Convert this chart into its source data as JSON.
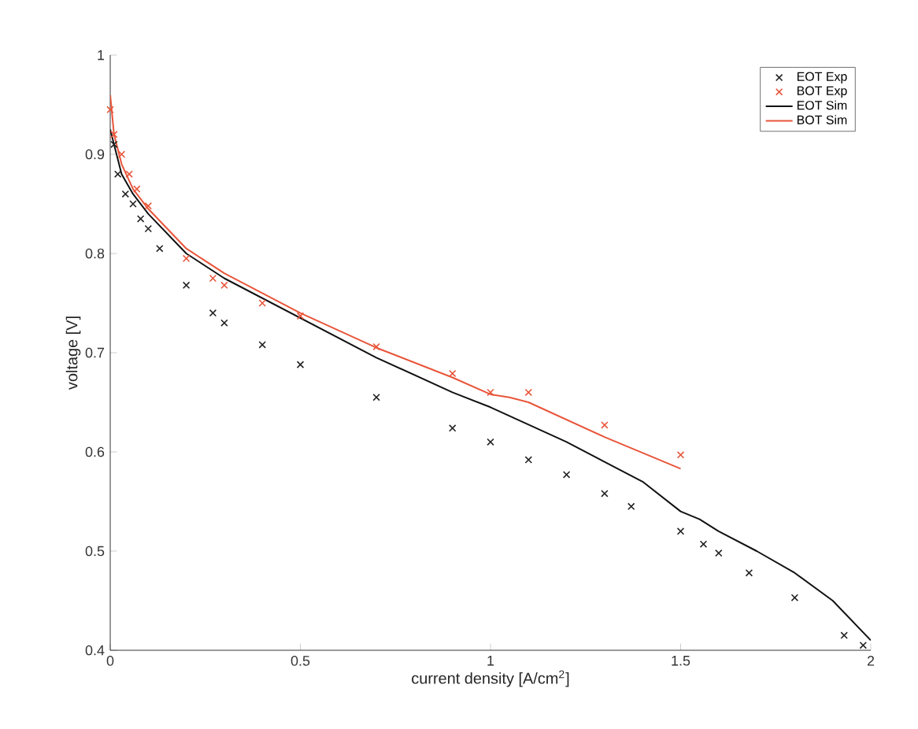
{
  "chart_data": {
    "type": "line",
    "xlabel": "current density [A/cm$^{2}$]",
    "ylabel": "voltage [V]",
    "xlim": [
      0,
      2
    ],
    "ylim": [
      0.4,
      1
    ],
    "xticks": [
      0,
      0.5,
      1,
      1.5,
      2
    ],
    "yticks": [
      0.4,
      0.5,
      0.6,
      0.7,
      0.8,
      0.9,
      1
    ],
    "grid": false,
    "legend": "top right",
    "series": [
      {
        "name": "EOT Exp",
        "type": "scatter",
        "marker": "cross",
        "color": "#222222",
        "x": [
          0.01,
          0.02,
          0.04,
          0.06,
          0.08,
          0.1,
          0.13,
          0.2,
          0.27,
          0.3,
          0.4,
          0.5,
          0.7,
          0.9,
          1.0,
          1.1,
          1.2,
          1.3,
          1.37,
          1.5,
          1.56,
          1.6,
          1.68,
          1.8,
          1.93,
          1.98
        ],
        "values": [
          0.91,
          0.88,
          0.86,
          0.85,
          0.835,
          0.825,
          0.805,
          0.768,
          0.74,
          0.73,
          0.708,
          0.688,
          0.655,
          0.624,
          0.61,
          0.592,
          0.577,
          0.558,
          0.545,
          0.52,
          0.507,
          0.498,
          0.478,
          0.453,
          0.415,
          0.405
        ]
      },
      {
        "name": "BOT Exp",
        "type": "scatter",
        "marker": "cross",
        "color": "#e8553a",
        "x": [
          0.0,
          0.01,
          0.03,
          0.05,
          0.07,
          0.1,
          0.2,
          0.27,
          0.3,
          0.4,
          0.5,
          0.7,
          0.9,
          1.0,
          1.1,
          1.3,
          1.5
        ],
        "values": [
          0.945,
          0.92,
          0.9,
          0.88,
          0.865,
          0.848,
          0.795,
          0.775,
          0.768,
          0.75,
          0.737,
          0.706,
          0.679,
          0.66,
          0.66,
          0.627,
          0.597
        ]
      },
      {
        "name": "EOT Sim",
        "line_style": "solid",
        "color": "#111111",
        "x": [
          0.0,
          0.01,
          0.03,
          0.06,
          0.1,
          0.2,
          0.3,
          0.5,
          0.7,
          0.9,
          1.0,
          1.2,
          1.4,
          1.5,
          1.55,
          1.6,
          1.7,
          1.8,
          1.9,
          2.0
        ],
        "values": [
          0.925,
          0.91,
          0.88,
          0.86,
          0.84,
          0.8,
          0.775,
          0.735,
          0.695,
          0.66,
          0.645,
          0.61,
          0.57,
          0.54,
          0.532,
          0.52,
          0.5,
          0.478,
          0.45,
          0.41
        ]
      },
      {
        "name": "BOT Sim",
        "line_style": "solid",
        "color": "#e8553a",
        "x": [
          0.0,
          0.01,
          0.03,
          0.06,
          0.1,
          0.2,
          0.3,
          0.5,
          0.7,
          0.9,
          1.0,
          1.05,
          1.1,
          1.3,
          1.5
        ],
        "values": [
          0.96,
          0.92,
          0.89,
          0.865,
          0.845,
          0.805,
          0.78,
          0.74,
          0.705,
          0.675,
          0.658,
          0.655,
          0.65,
          0.615,
          0.583
        ]
      }
    ]
  }
}
